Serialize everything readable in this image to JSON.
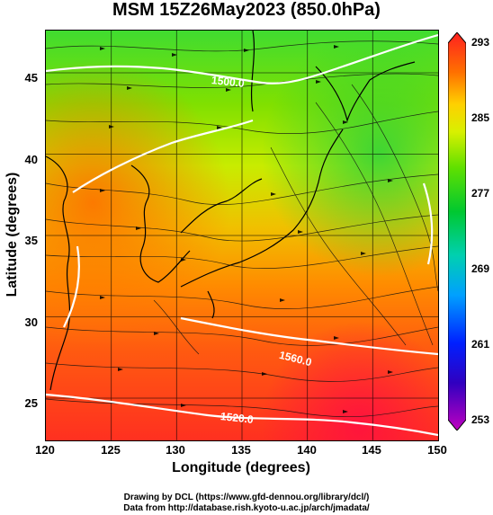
{
  "title": "MSM 15Z26May2023 (850.0hPa)",
  "axes": {
    "xlabel": "Longitude (degrees)",
    "ylabel": "Latitude  (degrees)",
    "xticks": [
      "120",
      "125",
      "130",
      "135",
      "140",
      "145",
      "150"
    ],
    "yticks": [
      "45",
      "40",
      "35",
      "30",
      "25"
    ],
    "xrange": [
      120,
      150
    ],
    "yrange": [
      22.4,
      47.6
    ]
  },
  "colorbar": {
    "labels": [
      "293",
      "285",
      "277",
      "269",
      "261",
      "253"
    ],
    "range": [
      253,
      293
    ],
    "colors": [
      "#c000c0",
      "#6000c0",
      "#0000c0",
      "#0040ff",
      "#00b0ff",
      "#00e0c0",
      "#00d040",
      "#40e000",
      "#c0f000",
      "#f0f000",
      "#ffb000",
      "#ff6000",
      "#ff2000"
    ]
  },
  "contours": [
    {
      "label": "1520.0"
    },
    {
      "label": "1560.0"
    },
    {
      "label": "1500.0"
    }
  ],
  "credits": {
    "line1": "Drawing by DCL (https://www.gfd-dennou.org/library/dcl/)",
    "line2": "Data from http://database.rish.kyoto-u.ac.jp/arch/jmadata/"
  }
}
